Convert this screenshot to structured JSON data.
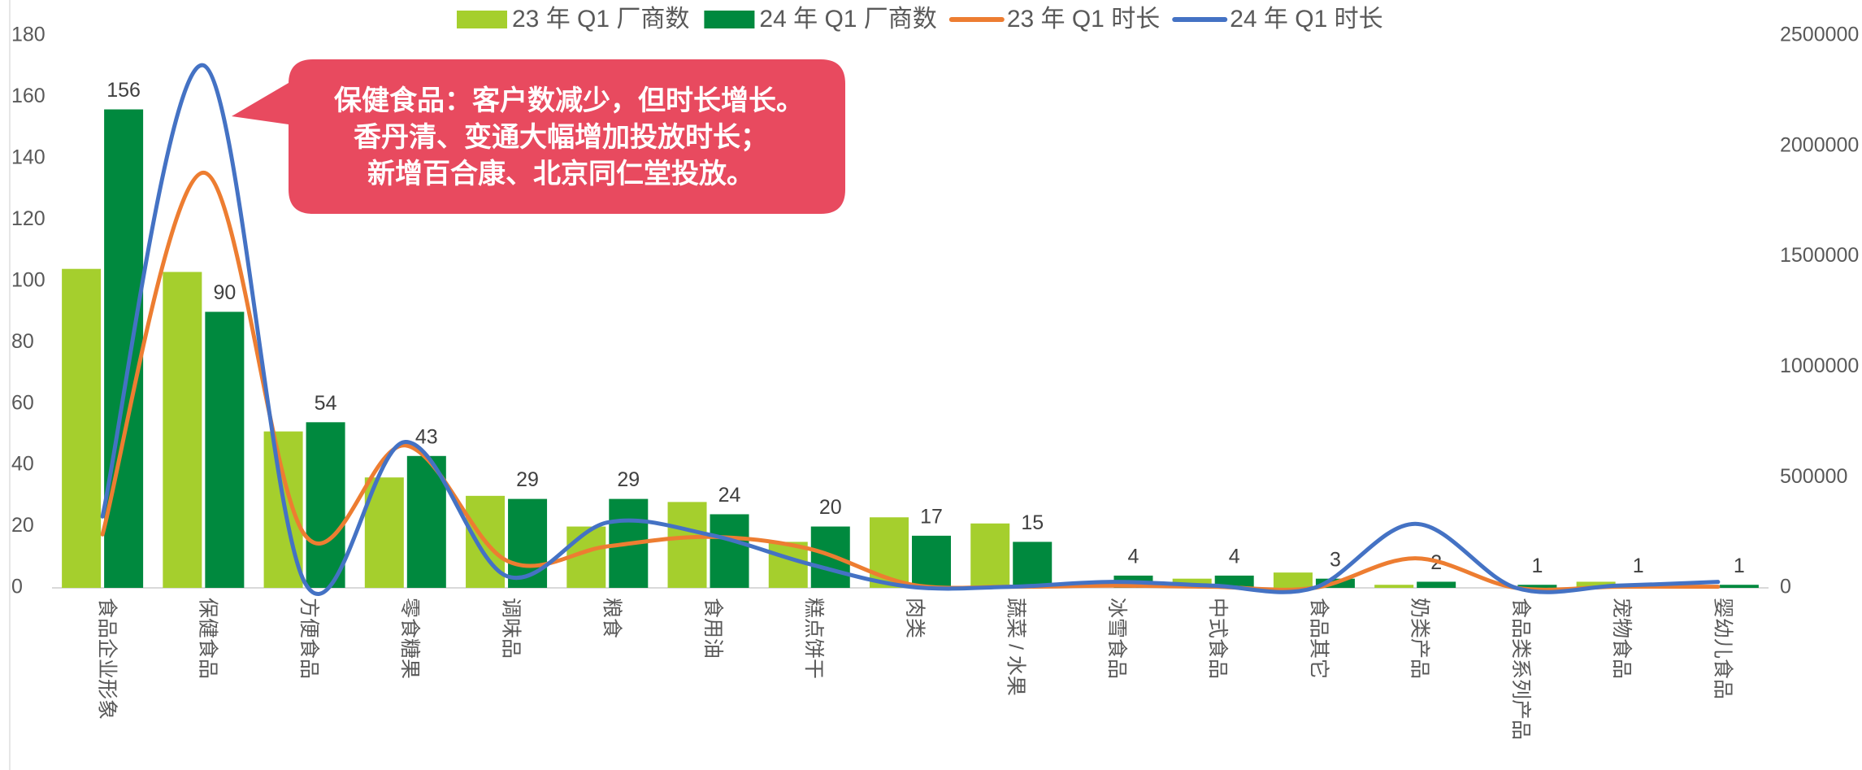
{
  "chart_data": {
    "type": "bar-line",
    "categories": [
      "食品企业形象",
      "保健食品",
      "方便食品",
      "零食糖果",
      "调味品",
      "粮食",
      "食用油",
      "糕点饼干",
      "肉类",
      "蔬菜 / 水果",
      "冰雪食品",
      "中式食品",
      "食品其它",
      "奶类产品",
      "食品类系列产品",
      "宠物食品",
      "婴幼儿食品"
    ],
    "series": [
      {
        "name": "23 年 Q1 厂商数",
        "type": "bar",
        "color": "#a5cf2d",
        "values": [
          104,
          103,
          51,
          36,
          30,
          20,
          28,
          15,
          23,
          21,
          0,
          3,
          5,
          1,
          0,
          2,
          0
        ]
      },
      {
        "name": "24 年 Q1 厂商数",
        "type": "bar",
        "color": "#00893e",
        "values": [
          156,
          90,
          54,
          43,
          29,
          29,
          24,
          20,
          17,
          15,
          4,
          4,
          3,
          2,
          1,
          1,
          1
        ],
        "show_labels": true
      },
      {
        "name": "23 年 Q1 时长",
        "type": "line",
        "axis": "y2",
        "color": "#ed7d31",
        "values": [
          242000,
          1880000,
          242000,
          645000,
          124000,
          188000,
          231000,
          177000,
          16000,
          5000,
          10000,
          5000,
          0,
          134000,
          0,
          5000,
          5000
        ]
      },
      {
        "name": "24 年 Q1 时长",
        "type": "line",
        "axis": "y2",
        "color": "#4472c4",
        "values": [
          323000,
          2366000,
          27000,
          661000,
          54000,
          296000,
          242000,
          108000,
          5000,
          5000,
          27000,
          10000,
          0,
          290000,
          0,
          10000,
          27000
        ]
      }
    ],
    "ylim": [
      0,
      180
    ],
    "yticks": [
      0,
      20,
      40,
      60,
      80,
      100,
      120,
      140,
      160,
      180
    ],
    "y2lim": [
      0,
      2500000
    ],
    "y2ticks": [
      0,
      500000,
      1000000,
      1500000,
      2000000,
      2500000
    ],
    "annotation": [
      "保健食品：客户数减少，但时长增长。",
      "香丹清、变通大幅增加投放时长；",
      "新增百合康、北京同仁堂投放。"
    ]
  }
}
